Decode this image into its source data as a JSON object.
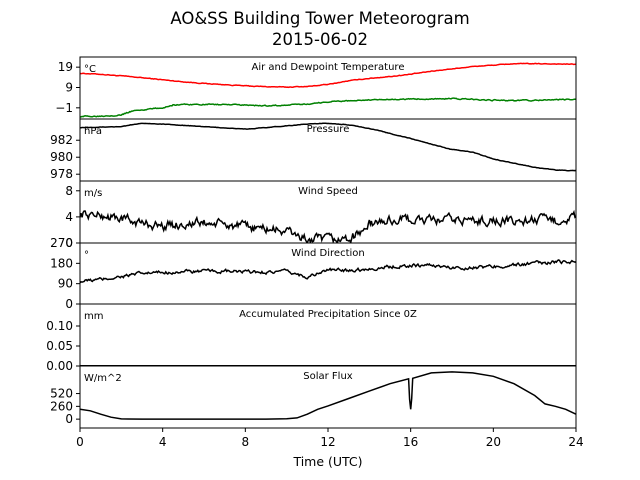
{
  "title_line1": "AO&SS Building Tower Meteorogram",
  "title_line2": "2015-06-02",
  "chart_data": {
    "type": "line",
    "xlabel": "Time (UTC)",
    "xlim": [
      0,
      24
    ],
    "xticks": [
      0,
      4,
      8,
      12,
      16,
      20,
      24
    ],
    "panels": [
      {
        "id": "temperature",
        "title": "Air and Dewpoint Temperature",
        "unit": "°C",
        "ylim": [
          -6.5,
          24
        ],
        "yticks": [
          -1,
          9,
          19
        ],
        "tick_labels": [
          "−1",
          "9",
          "19"
        ],
        "series": [
          {
            "color": "#ff0000",
            "x": [
              0,
              1,
              2,
              3,
              4,
              5,
              6,
              7,
              8,
              9,
              10,
              11,
              12,
              13,
              14,
              15,
              16,
              17,
              18,
              19,
              20,
              21,
              22,
              23,
              24
            ],
            "values": [
              16,
              15.5,
              14.7,
              13.8,
              12.8,
              11.8,
              11.0,
              10.4,
              9.8,
              9.4,
              9.2,
              9.5,
              10.5,
              12.3,
              13.5,
              14.4,
              15.5,
              17.0,
              18.2,
              19.3,
              20.0,
              20.7,
              20.7,
              20.6,
              20.4
            ],
            "noise": 0.3
          },
          {
            "color": "#008000",
            "x": [
              0,
              1,
              2,
              2.5,
              3,
              4,
              4.5,
              5,
              6,
              7,
              8,
              9,
              10,
              11,
              12,
              13,
              14,
              15,
              16,
              17,
              18,
              19,
              20,
              21,
              22,
              23,
              24
            ],
            "values": [
              -5.3,
              -5.0,
              -4.5,
              -2.6,
              -2.0,
              -1.0,
              0.4,
              0.7,
              0.7,
              0.6,
              0.3,
              0.0,
              0.3,
              0.8,
              2.0,
              2.5,
              2.8,
              3.0,
              3.3,
              3.4,
              3.5,
              3.2,
              2.8,
              2.6,
              2.7,
              3.0,
              3.1
            ],
            "noise": 0.5
          }
        ]
      },
      {
        "id": "pressure",
        "title": "Pressure",
        "unit": "hPa",
        "ylim": [
          977.2,
          984.5
        ],
        "yticks": [
          978,
          980,
          982
        ],
        "tick_labels": [
          "978",
          "980",
          "982"
        ],
        "series": [
          {
            "color": "#000000",
            "x": [
              0,
              2,
              3,
              4,
              6,
              8,
              10,
              11,
              12,
              13,
              14,
              16,
              18,
              19,
              20,
              22,
              23,
              24
            ],
            "values": [
              983.5,
              983.6,
              984.0,
              983.9,
              983.6,
              983.3,
              983.7,
              983.9,
              984.0,
              983.8,
              983.4,
              982.2,
              980.9,
              980.6,
              979.8,
              978.8,
              978.5,
              978.4
            ],
            "noise": 0.05
          }
        ]
      },
      {
        "id": "wind_speed",
        "title": "Wind Speed",
        "unit": "m/s",
        "ylim": [
          0,
          9.5
        ],
        "yticks": [
          0,
          4,
          8
        ],
        "tick_labels": [
          "0",
          "4",
          "8"
        ],
        "series": [
          {
            "color": "#000000",
            "x": [
              0,
              1,
              2,
              3,
              4,
              5,
              6,
              7,
              8,
              9,
              10,
              10.5,
              11,
              12,
              13,
              13.5,
              14,
              15,
              16,
              17,
              18,
              19,
              20,
              21,
              22,
              23,
              24
            ],
            "values": [
              4.5,
              4.2,
              3.8,
              3.0,
              2.6,
              2.9,
              3.1,
              2.8,
              2.4,
              2.2,
              1.8,
              1.2,
              0.5,
              0.5,
              0.6,
              1.5,
              2.8,
              3.5,
              3.6,
              3.4,
              3.6,
              3.4,
              3.5,
              3.2,
              3.6,
              3.4,
              4.0
            ],
            "noise": 1.3
          }
        ]
      },
      {
        "id": "wind_direction",
        "title": "Wind Direction",
        "unit": "°",
        "ylim": [
          0,
          270
        ],
        "yticks": [
          0,
          90,
          180,
          270
        ],
        "tick_labels": [
          "0",
          "90",
          "180",
          "270"
        ],
        "series": [
          {
            "color": "#000000",
            "x": [
              0,
              1,
              2,
              3,
              4,
              5,
              6,
              7,
              8,
              9,
              10,
              11,
              12,
              13,
              14,
              15,
              16,
              17,
              18,
              19,
              20,
              21,
              22,
              23,
              24
            ],
            "values": [
              100,
              108,
              122,
              135,
              140,
              143,
              145,
              144,
              142,
              141,
              143,
              120,
              150,
              150,
              155,
              165,
              170,
              172,
              160,
              162,
              165,
              172,
              180,
              185,
              190
            ],
            "noise": 14
          }
        ]
      },
      {
        "id": "precipitation",
        "title": "Accumulated Precipitation Since 0Z",
        "unit": "mm",
        "ylim": [
          0,
          0.155
        ],
        "yticks": [
          0.0,
          0.05,
          0.1
        ],
        "tick_labels": [
          "0.00",
          "0.05",
          "0.10"
        ],
        "series": [
          {
            "color": "#000000",
            "x": [
              0,
              24
            ],
            "values": [
              0.0,
              0.0
            ],
            "noise": 0
          }
        ]
      },
      {
        "id": "solar_flux",
        "title": "Solar Flux",
        "unit": "W/m^2",
        "ylim": [
          -180,
          1080
        ],
        "yticks": [
          0,
          260,
          520
        ],
        "tick_labels": [
          "0",
          "260",
          "520"
        ],
        "series": [
          {
            "color": "#000000",
            "x": [
              0,
              0.5,
              1,
              1.5,
              2,
              3,
              4,
              5,
              6,
              7,
              8,
              9,
              10,
              10.5,
              11,
              11.5,
              12,
              13,
              14,
              15,
              15.9,
              15.95,
              16.0,
              16.05,
              16.1,
              17,
              18,
              19,
              20,
              21,
              22,
              22.5,
              23,
              23.5,
              24
            ],
            "values": [
              200,
              170,
              100,
              40,
              5,
              0,
              0,
              0,
              0,
              0,
              0,
              0,
              8,
              25,
              100,
              200,
              270,
              420,
              570,
              720,
              820,
              400,
              200,
              420,
              830,
              940,
              960,
              940,
              870,
              720,
              480,
              310,
              260,
              200,
              100
            ],
            "noise": 0
          }
        ]
      }
    ]
  }
}
